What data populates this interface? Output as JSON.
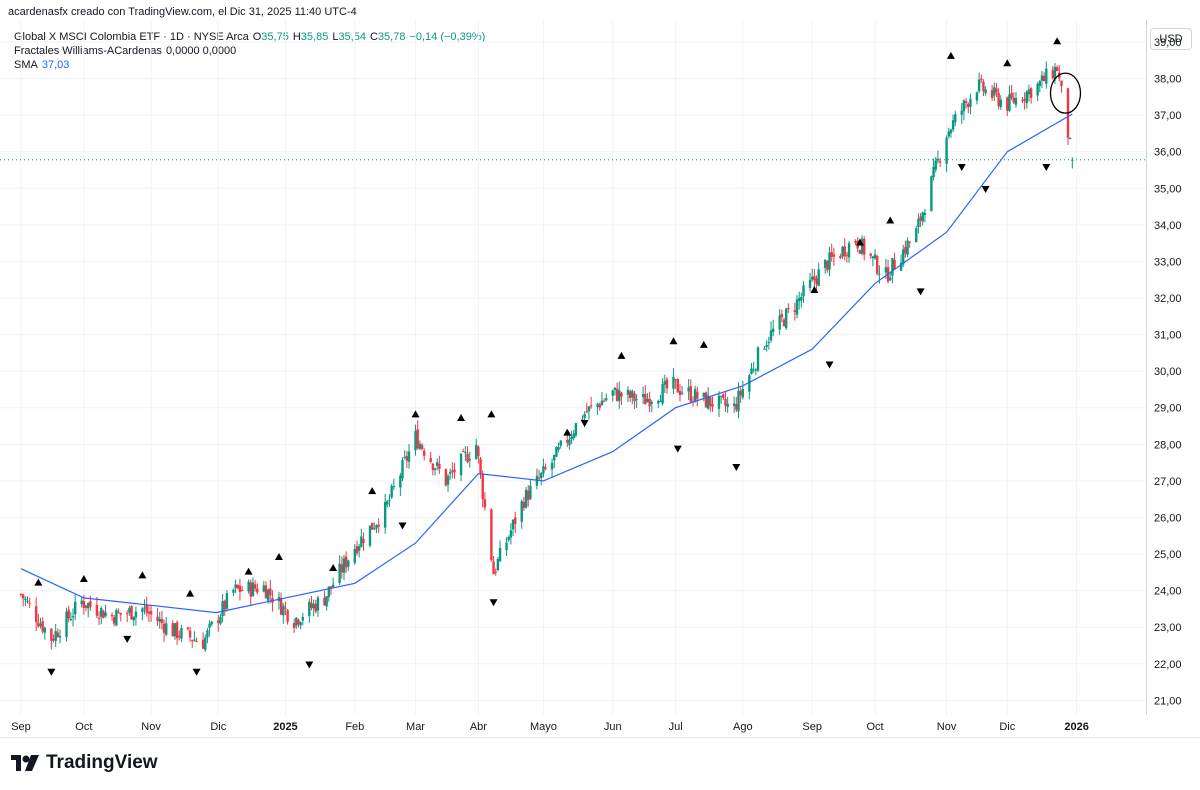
{
  "header": {
    "author_line": "acardenasfx creado con TradingView.com, el Dic 31, 2025 11:40 UTC-4"
  },
  "legend": {
    "symbol": "Global X MSCI Colombia ETF · 1D · NYSE Arca",
    "o_label": "O",
    "o_value": "35,75",
    "h_label": "H",
    "h_value": "35,85",
    "l_label": "L",
    "l_value": "35,54",
    "c_label": "C",
    "c_value": "35,78",
    "change": "−0,14 (−0,39%)",
    "fractals_label": "Fractales Williams-ACardenas",
    "fractals_values": "0,0000  0,0000",
    "sma_label": "SMA",
    "sma_value": "37,03"
  },
  "axis": {
    "currency": "USD"
  },
  "branding": {
    "logo_text": "TradingView"
  },
  "colors": {
    "up": "#089981",
    "down": "#f23645",
    "sma": "#2962ff",
    "current_price_line": "#089981",
    "grid": "#f0f3fa"
  },
  "chart_data": {
    "type": "candlestick",
    "title": "Global X MSCI Colombia ETF · 1D · NYSE Arca",
    "ylim": [
      20.6,
      39.6
    ],
    "y_ticks": [
      "21,00",
      "22,00",
      "23,00",
      "24,00",
      "25,00",
      "26,00",
      "27,00",
      "28,00",
      "29,00",
      "30,00",
      "31,00",
      "32,00",
      "33,00",
      "34,00",
      "35,00",
      "36,00",
      "37,00",
      "38,00",
      "39,00"
    ],
    "x_ticks": [
      "Sep",
      "Oct",
      "Nov",
      "Dic",
      "2025",
      "Feb",
      "Mar",
      "Abr",
      "Mayo",
      "Jun",
      "Jul",
      "Ago",
      "Sep",
      "Oct",
      "Nov",
      "Dic",
      "2026"
    ],
    "current_price": 35.78,
    "close_series": [
      {
        "date": "2024-09-02",
        "close": 23.9
      },
      {
        "date": "2024-09-16",
        "close": 22.7
      },
      {
        "date": "2024-09-30",
        "close": 23.7
      },
      {
        "date": "2024-10-14",
        "close": 23.3
      },
      {
        "date": "2024-10-28",
        "close": 23.5
      },
      {
        "date": "2024-11-11",
        "close": 22.9
      },
      {
        "date": "2024-11-25",
        "close": 22.6
      },
      {
        "date": "2024-12-09",
        "close": 24.0
      },
      {
        "date": "2024-12-23",
        "close": 24.1
      },
      {
        "date": "2025-01-06",
        "close": 23.2
      },
      {
        "date": "2025-01-20",
        "close": 23.8
      },
      {
        "date": "2025-02-03",
        "close": 25.2
      },
      {
        "date": "2025-02-17",
        "close": 26.2
      },
      {
        "date": "2025-03-03",
        "close": 28.2
      },
      {
        "date": "2025-03-17",
        "close": 27.0
      },
      {
        "date": "2025-03-31",
        "close": 28.0
      },
      {
        "date": "2025-04-08",
        "close": 24.5
      },
      {
        "date": "2025-04-22",
        "close": 26.5
      },
      {
        "date": "2025-05-05",
        "close": 27.5
      },
      {
        "date": "2025-05-19",
        "close": 28.8
      },
      {
        "date": "2025-06-02",
        "close": 29.4
      },
      {
        "date": "2025-06-16",
        "close": 29.2
      },
      {
        "date": "2025-06-30",
        "close": 29.6
      },
      {
        "date": "2025-07-14",
        "close": 29.2
      },
      {
        "date": "2025-07-28",
        "close": 29.0
      },
      {
        "date": "2025-08-11",
        "close": 30.8
      },
      {
        "date": "2025-08-25",
        "close": 31.8
      },
      {
        "date": "2025-09-08",
        "close": 32.9
      },
      {
        "date": "2025-09-22",
        "close": 33.6
      },
      {
        "date": "2025-10-06",
        "close": 32.6
      },
      {
        "date": "2025-10-20",
        "close": 33.8
      },
      {
        "date": "2025-11-03",
        "close": 36.5
      },
      {
        "date": "2025-11-17",
        "close": 37.8
      },
      {
        "date": "2025-12-01",
        "close": 37.3
      },
      {
        "date": "2025-12-15",
        "close": 37.8
      },
      {
        "date": "2025-12-24",
        "close": 38.3
      },
      {
        "date": "2025-12-31",
        "close": 35.78
      }
    ],
    "sma_series": [
      {
        "date": "2024-09-02",
        "value": 24.6
      },
      {
        "date": "2024-10-01",
        "value": 23.8
      },
      {
        "date": "2024-11-01",
        "value": 23.6
      },
      {
        "date": "2024-12-01",
        "value": 23.4
      },
      {
        "date": "2025-01-02",
        "value": 23.8
      },
      {
        "date": "2025-02-03",
        "value": 24.2
      },
      {
        "date": "2025-03-03",
        "value": 25.3
      },
      {
        "date": "2025-04-01",
        "value": 27.2
      },
      {
        "date": "2025-05-01",
        "value": 27.0
      },
      {
        "date": "2025-06-02",
        "value": 27.8
      },
      {
        "date": "2025-07-01",
        "value": 29.0
      },
      {
        "date": "2025-08-01",
        "value": 29.6
      },
      {
        "date": "2025-09-02",
        "value": 30.6
      },
      {
        "date": "2025-10-01",
        "value": 32.4
      },
      {
        "date": "2025-11-03",
        "value": 33.8
      },
      {
        "date": "2025-12-01",
        "value": 36.0
      },
      {
        "date": "2025-12-31",
        "value": 37.03
      }
    ],
    "fractal_highs": [
      {
        "date": "2024-09-10",
        "value": 24.0
      },
      {
        "date": "2024-10-01",
        "value": 24.1
      },
      {
        "date": "2024-10-28",
        "value": 24.2
      },
      {
        "date": "2024-11-19",
        "value": 23.7
      },
      {
        "date": "2024-12-16",
        "value": 24.3
      },
      {
        "date": "2024-12-30",
        "value": 24.7
      },
      {
        "date": "2025-01-24",
        "value": 24.4
      },
      {
        "date": "2025-02-11",
        "value": 26.5
      },
      {
        "date": "2025-03-03",
        "value": 28.6
      },
      {
        "date": "2025-03-24",
        "value": 28.5
      },
      {
        "date": "2025-04-07",
        "value": 28.6
      },
      {
        "date": "2025-05-12",
        "value": 28.1
      },
      {
        "date": "2025-06-06",
        "value": 30.2
      },
      {
        "date": "2025-06-30",
        "value": 30.6
      },
      {
        "date": "2025-07-14",
        "value": 30.5
      },
      {
        "date": "2025-09-03",
        "value": 32.0
      },
      {
        "date": "2025-09-24",
        "value": 33.3
      },
      {
        "date": "2025-10-08",
        "value": 33.9
      },
      {
        "date": "2025-11-05",
        "value": 38.4
      },
      {
        "date": "2025-12-01",
        "value": 38.2
      },
      {
        "date": "2025-12-24",
        "value": 38.8
      }
    ],
    "fractal_lows": [
      {
        "date": "2024-09-16",
        "value": 22.0
      },
      {
        "date": "2024-10-21",
        "value": 22.9
      },
      {
        "date": "2024-11-22",
        "value": 22.0
      },
      {
        "date": "2025-01-13",
        "value": 22.2
      },
      {
        "date": "2025-02-25",
        "value": 26.0
      },
      {
        "date": "2025-04-08",
        "value": 23.9
      },
      {
        "date": "2025-05-20",
        "value": 28.8
      },
      {
        "date": "2025-07-02",
        "value": 28.1
      },
      {
        "date": "2025-07-29",
        "value": 27.6
      },
      {
        "date": "2025-09-10",
        "value": 30.4
      },
      {
        "date": "2025-10-22",
        "value": 32.4
      },
      {
        "date": "2025-11-10",
        "value": 35.8
      },
      {
        "date": "2025-11-21",
        "value": 35.2
      },
      {
        "date": "2025-12-19",
        "value": 35.8
      }
    ]
  }
}
